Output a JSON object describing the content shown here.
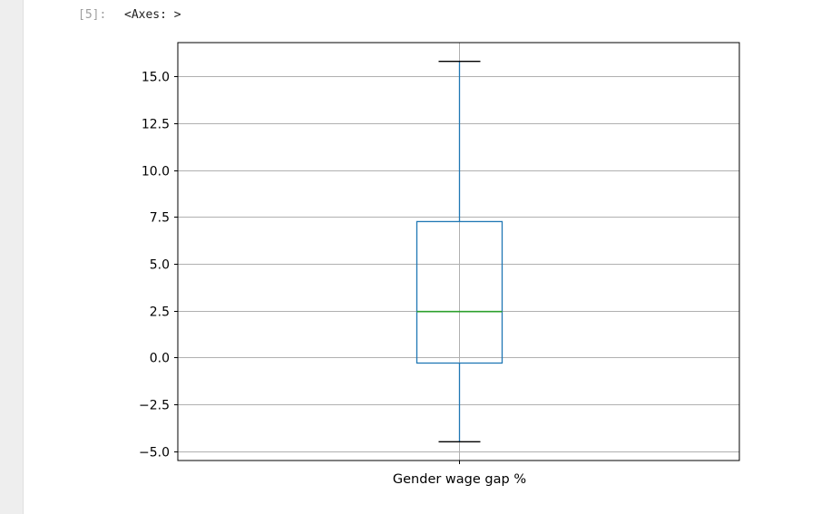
{
  "cell": {
    "prompt": "[5]:",
    "output_text": "<Axes: >"
  },
  "chart_data": {
    "type": "box",
    "categories": [
      "Gender wage gap %"
    ],
    "series": [
      {
        "whisker_low": -4.5,
        "q1": -0.3,
        "median": 2.45,
        "q3": 7.25,
        "whisker_high": 15.8
      }
    ],
    "ylim": [
      -5.5,
      16.8
    ],
    "yticks": [
      -5.0,
      -2.5,
      0.0,
      2.5,
      5.0,
      7.5,
      10.0,
      12.5,
      15.0
    ],
    "ytick_labels": [
      "−5.0",
      "−2.5",
      "0.0",
      "2.5",
      "5.0",
      "7.5",
      "10.0",
      "12.5",
      "15.0"
    ],
    "grid": true,
    "colors": {
      "box": "#1f77b4",
      "median": "#2ca02c",
      "caps": "#000000",
      "grid": "#b0b0b0",
      "frame": "#000000"
    }
  }
}
